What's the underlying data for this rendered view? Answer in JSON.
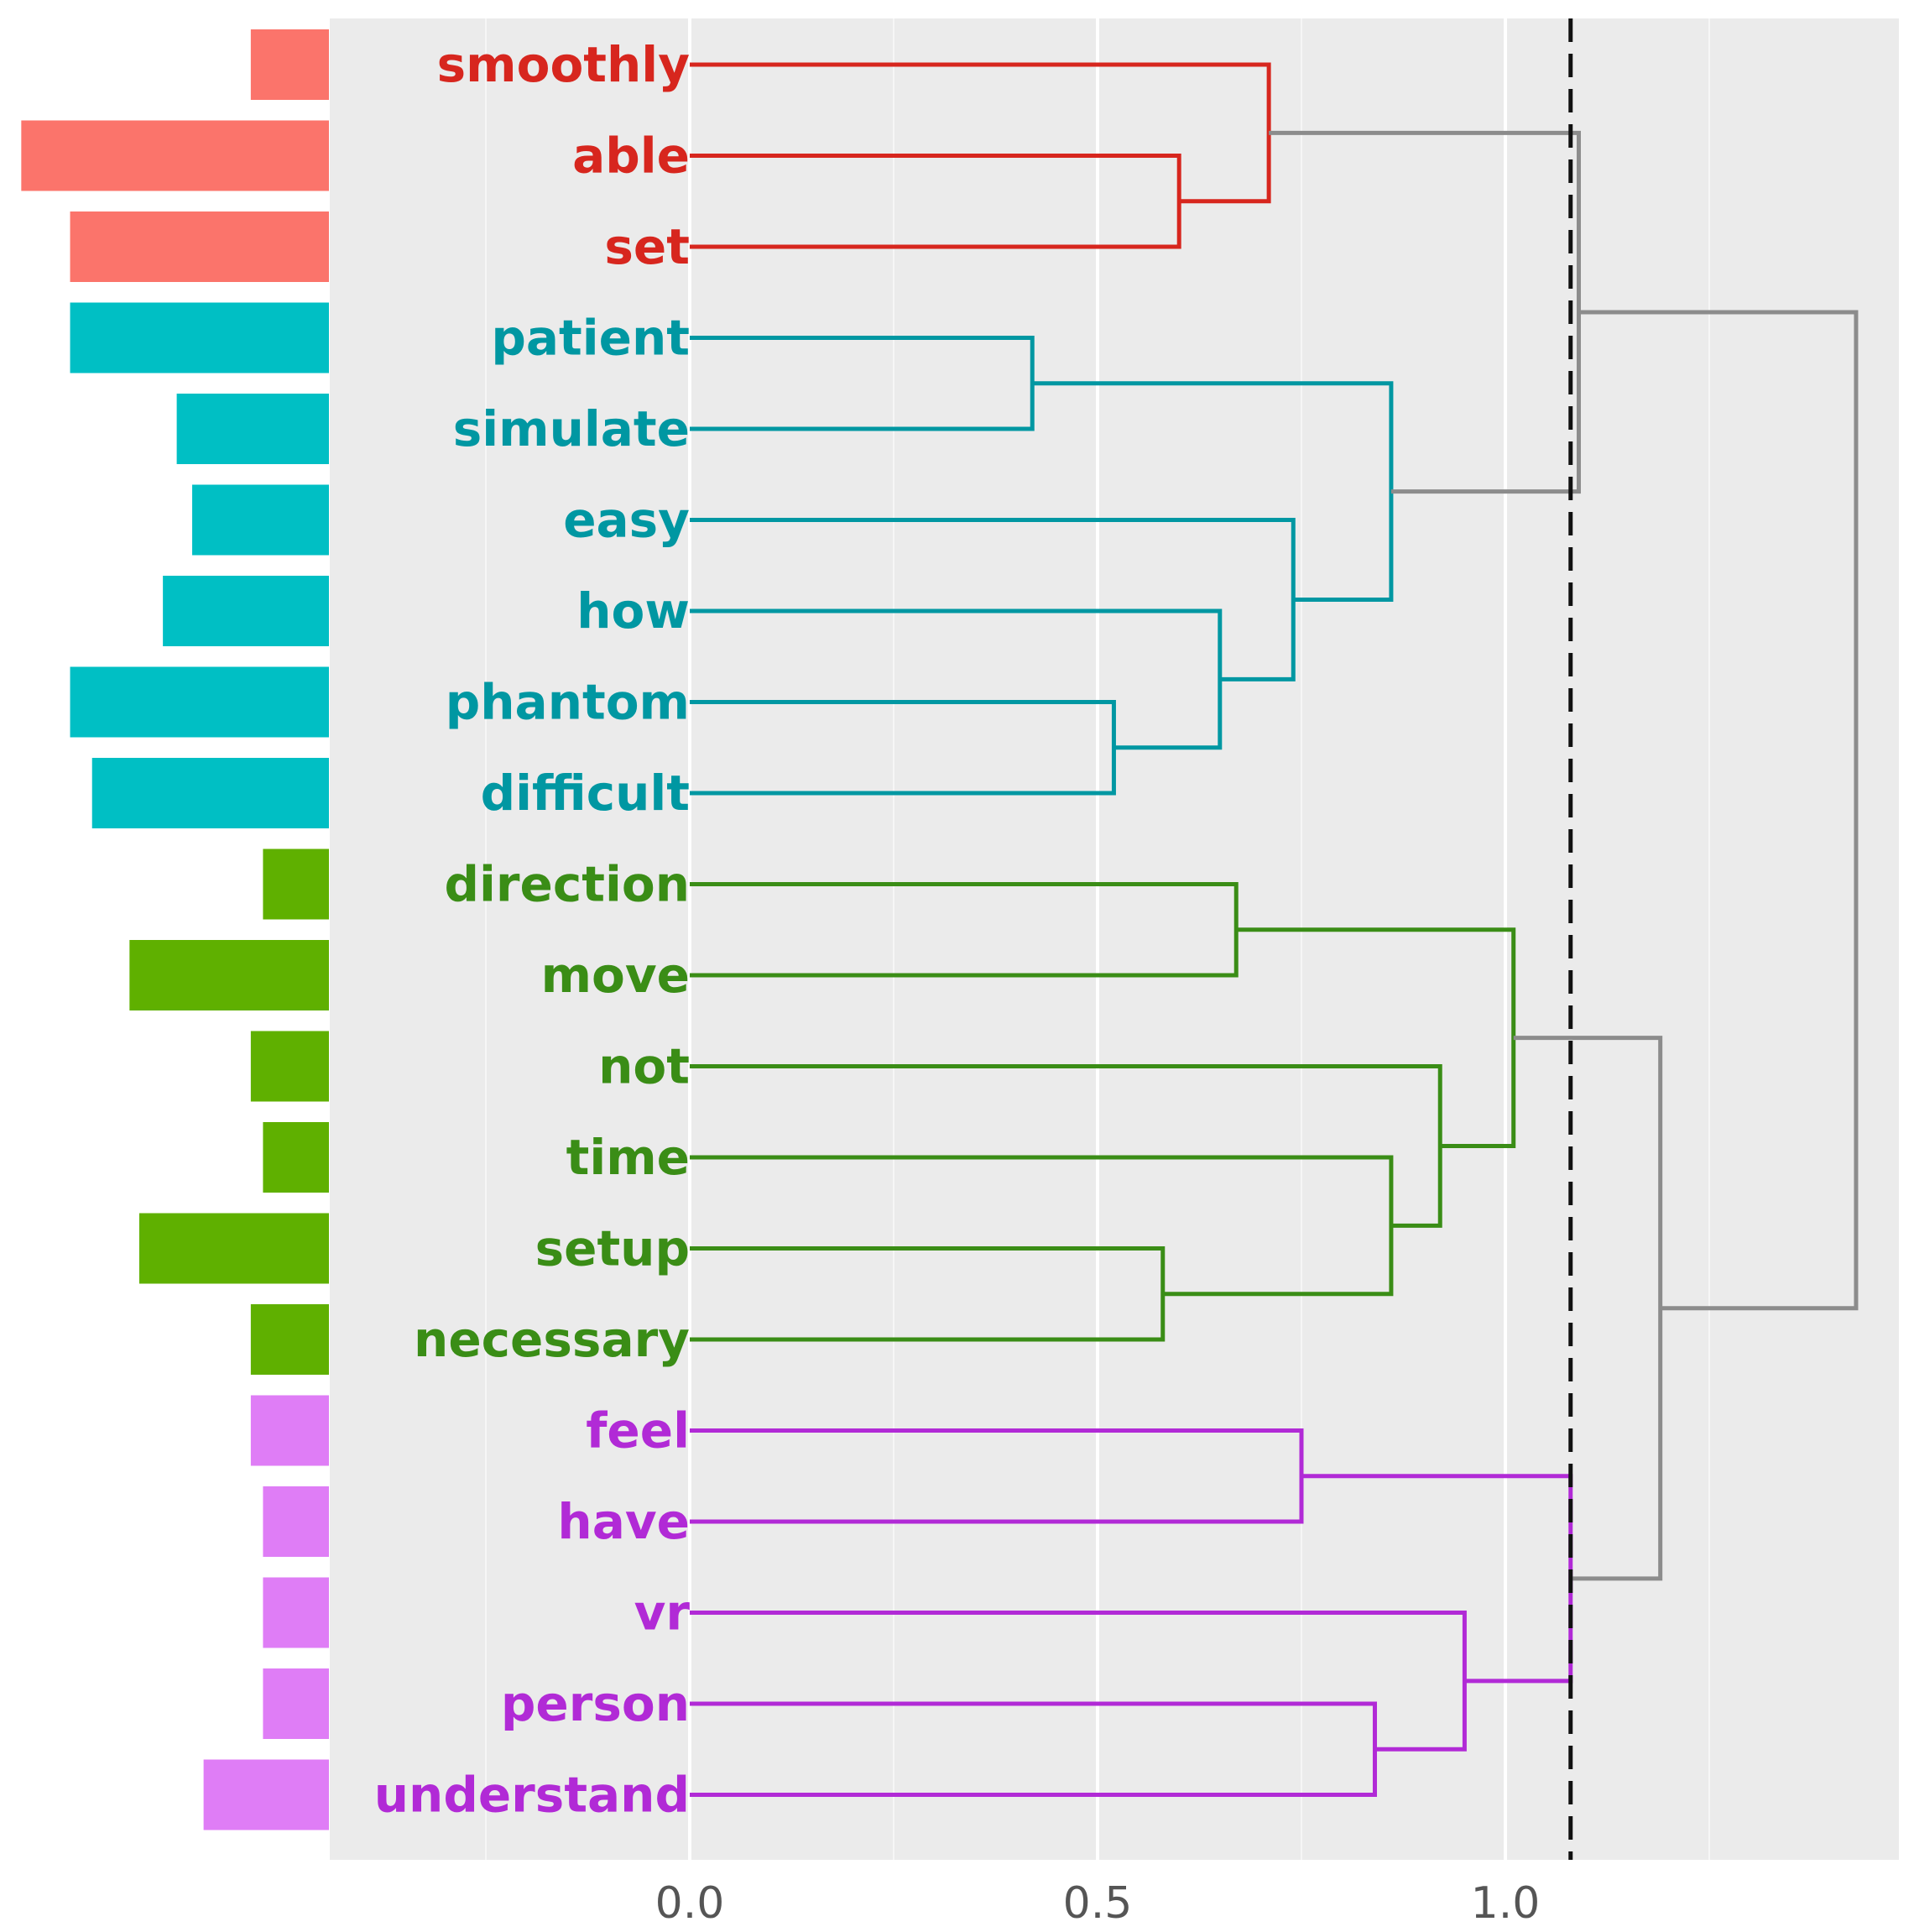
{
  "chart_data": {
    "type": "dendrogram",
    "title": "",
    "xlabel": "",
    "ylabel": "",
    "x_axis": {
      "range": [
        -0.45,
        1.48
      ],
      "ticks": [
        {
          "value": 0.0,
          "label": "0.0"
        },
        {
          "value": 0.5,
          "label": "0.5"
        },
        {
          "value": 1.0,
          "label": "1.0"
        }
      ],
      "minor_gridlines": [
        -0.25,
        0.25,
        0.75,
        1.25
      ]
    },
    "cut_height": 1.08,
    "cluster_colors": {
      "red": "#d7261e",
      "teal": "#0097a2",
      "green": "#3a8d16",
      "purple": "#b12ad6",
      "gray": "#8c8c8c"
    },
    "bar_colors": {
      "red": "#fb746b",
      "teal": "#00bfc4",
      "green": "#5fb000",
      "purple": "#df7df6"
    },
    "leaves": [
      {
        "label": "smoothly",
        "cluster": "red",
        "bar_length": 0.096
      },
      {
        "label": "able",
        "cluster": "red",
        "bar_length": 0.378
      },
      {
        "label": "set",
        "cluster": "red",
        "bar_length": 0.318
      },
      {
        "label": "patient",
        "cluster": "teal",
        "bar_length": 0.318
      },
      {
        "label": "simulate",
        "cluster": "teal",
        "bar_length": 0.187
      },
      {
        "label": "easy",
        "cluster": "teal",
        "bar_length": 0.168
      },
      {
        "label": "how",
        "cluster": "teal",
        "bar_length": 0.204
      },
      {
        "label": "phantom",
        "cluster": "teal",
        "bar_length": 0.318
      },
      {
        "label": "difficult",
        "cluster": "teal",
        "bar_length": 0.291
      },
      {
        "label": "direction",
        "cluster": "green",
        "bar_length": 0.081
      },
      {
        "label": "move",
        "cluster": "green",
        "bar_length": 0.245
      },
      {
        "label": "not",
        "cluster": "green",
        "bar_length": 0.096
      },
      {
        "label": "time",
        "cluster": "green",
        "bar_length": 0.081
      },
      {
        "label": "setup",
        "cluster": "green",
        "bar_length": 0.233
      },
      {
        "label": "necessary",
        "cluster": "green",
        "bar_length": 0.096
      },
      {
        "label": "feel",
        "cluster": "purple",
        "bar_length": 0.096
      },
      {
        "label": "have",
        "cluster": "purple",
        "bar_length": 0.081
      },
      {
        "label": "vr",
        "cluster": "purple",
        "bar_length": 0.081
      },
      {
        "label": "person",
        "cluster": "purple",
        "bar_length": 0.081
      },
      {
        "label": "understand",
        "cluster": "purple",
        "bar_length": 0.154
      }
    ],
    "merges": [
      {
        "id": "m1",
        "left": "able",
        "right": "set",
        "height": 0.6,
        "cluster": "red"
      },
      {
        "id": "m2",
        "left": "smoothly",
        "right": "m1",
        "height": 0.71,
        "cluster": "red"
      },
      {
        "id": "m3",
        "left": "patient",
        "right": "simulate",
        "height": 0.42,
        "cluster": "teal"
      },
      {
        "id": "m4",
        "left": "phantom",
        "right": "difficult",
        "height": 0.52,
        "cluster": "teal"
      },
      {
        "id": "m5",
        "left": "how",
        "right": "m4",
        "height": 0.65,
        "cluster": "teal"
      },
      {
        "id": "m6",
        "left": "easy",
        "right": "m5",
        "height": 0.74,
        "cluster": "teal"
      },
      {
        "id": "m7",
        "left": "m3",
        "right": "m6",
        "height": 0.86,
        "cluster": "teal"
      },
      {
        "id": "m8",
        "left": "m2",
        "right": "m7",
        "height": 1.09,
        "cluster": "gray"
      },
      {
        "id": "m9",
        "left": "direction",
        "right": "move",
        "height": 0.67,
        "cluster": "green"
      },
      {
        "id": "m10",
        "left": "setup",
        "right": "necessary",
        "height": 0.58,
        "cluster": "green"
      },
      {
        "id": "m11",
        "left": "time",
        "right": "m10",
        "height": 0.86,
        "cluster": "green"
      },
      {
        "id": "m12",
        "left": "not",
        "right": "m11",
        "height": 0.92,
        "cluster": "green"
      },
      {
        "id": "m13",
        "left": "m9",
        "right": "m12",
        "height": 1.01,
        "cluster": "green"
      },
      {
        "id": "m14",
        "left": "feel",
        "right": "have",
        "height": 0.75,
        "cluster": "purple"
      },
      {
        "id": "m15",
        "left": "person",
        "right": "understand",
        "height": 0.84,
        "cluster": "purple"
      },
      {
        "id": "m16",
        "left": "vr",
        "right": "m15",
        "height": 0.95,
        "cluster": "purple"
      },
      {
        "id": "m17",
        "left": "m14",
        "right": "m16",
        "height": 1.08,
        "cluster": "purple"
      },
      {
        "id": "m18",
        "left": "m13",
        "right": "m17",
        "height": 1.19,
        "cluster": "gray"
      },
      {
        "id": "m19",
        "left": "m8",
        "right": "m18",
        "height": 1.43,
        "cluster": "gray"
      }
    ]
  }
}
